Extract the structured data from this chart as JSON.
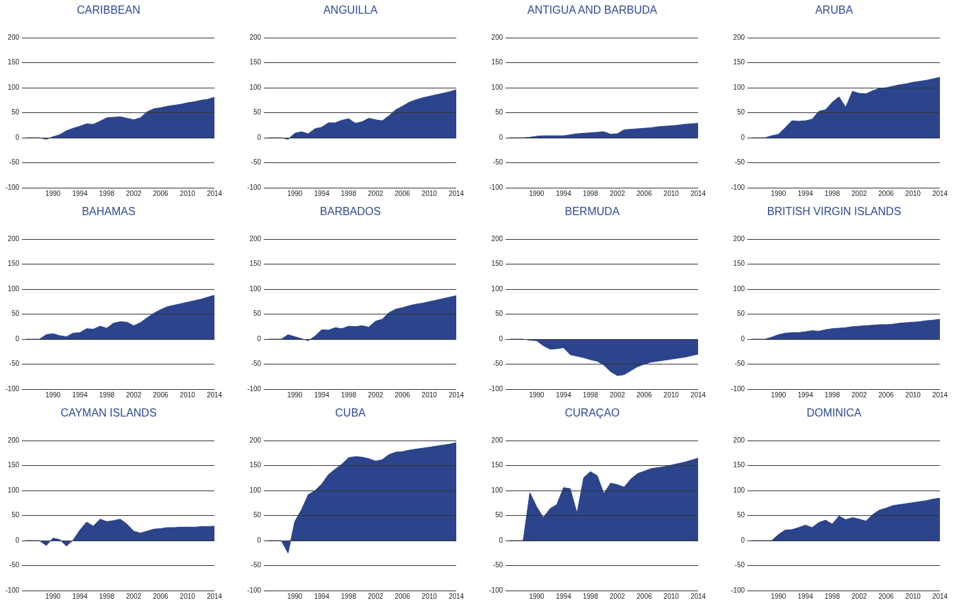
{
  "chart_data": [
    {
      "type": "area",
      "title": "CARIBBEAN",
      "color": "#2b448c",
      "grid": "y",
      "xlim": [
        1986,
        2014
      ],
      "ylim": [
        -100,
        200
      ],
      "xticks": [
        1990,
        1994,
        1998,
        2002,
        2006,
        2010,
        2014
      ],
      "yticks": [
        -100,
        -50,
        0,
        50,
        100,
        150,
        200
      ],
      "x": [
        1986,
        1987,
        1988,
        1989,
        1990,
        1991,
        1992,
        1993,
        1994,
        1995,
        1996,
        1997,
        1998,
        1999,
        2000,
        2001,
        2002,
        2003,
        2004,
        2005,
        2006,
        2007,
        2008,
        2009,
        2010,
        2011,
        2012,
        2013,
        2014
      ],
      "values": [
        0,
        0,
        0,
        -3,
        2,
        6,
        14,
        19,
        23,
        28,
        27,
        33,
        40,
        41,
        42,
        39,
        36,
        40,
        52,
        58,
        60,
        63,
        65,
        67,
        70,
        72,
        75,
        77,
        81
      ]
    },
    {
      "type": "area",
      "title": "ANGUILLA",
      "color": "#2b448c",
      "grid": "y",
      "xlim": [
        1986,
        2014
      ],
      "ylim": [
        -100,
        200
      ],
      "xticks": [
        1990,
        1994,
        1998,
        2002,
        2006,
        2010,
        2014
      ],
      "yticks": [
        -100,
        -50,
        0,
        50,
        100,
        150,
        200
      ],
      "x": [
        1986,
        1987,
        1988,
        1989,
        1990,
        1991,
        1992,
        1993,
        1994,
        1995,
        1996,
        1997,
        1998,
        1999,
        2000,
        2001,
        2002,
        2003,
        2004,
        2005,
        2006,
        2007,
        2008,
        2009,
        2010,
        2011,
        2012,
        2013,
        2014
      ],
      "values": [
        0,
        0,
        0,
        -3,
        9,
        12,
        8,
        18,
        21,
        30,
        30,
        35,
        38,
        29,
        32,
        39,
        36,
        34,
        44,
        56,
        63,
        71,
        76,
        80,
        83,
        86,
        89,
        92,
        96
      ]
    },
    {
      "type": "area",
      "title": "ANTIGUA AND BARBUDA",
      "color": "#2b448c",
      "grid": "y",
      "xlim": [
        1986,
        2014
      ],
      "ylim": [
        -100,
        200
      ],
      "xticks": [
        1990,
        1994,
        1998,
        2002,
        2006,
        2010,
        2014
      ],
      "yticks": [
        -100,
        -50,
        0,
        50,
        100,
        150,
        200
      ],
      "x": [
        1986,
        1987,
        1988,
        1989,
        1990,
        1991,
        1992,
        1993,
        1994,
        1995,
        1996,
        1997,
        1998,
        1999,
        2000,
        2001,
        2002,
        2003,
        2004,
        2005,
        2006,
        2007,
        2008,
        2009,
        2010,
        2011,
        2012,
        2013,
        2014
      ],
      "values": [
        0,
        0,
        0,
        1,
        3,
        4,
        4,
        4,
        4,
        6,
        8,
        9,
        10,
        11,
        12,
        7,
        8,
        16,
        17,
        18,
        19,
        20,
        22,
        23,
        24,
        25,
        27,
        28,
        29
      ]
    },
    {
      "type": "area",
      "title": "ARUBA",
      "color": "#2b448c",
      "grid": "y",
      "xlim": [
        1986,
        2014
      ],
      "ylim": [
        -100,
        200
      ],
      "xticks": [
        1990,
        1994,
        1998,
        2002,
        2006,
        2010,
        2014
      ],
      "yticks": [
        -100,
        -50,
        0,
        50,
        100,
        150,
        200
      ],
      "x": [
        1986,
        1987,
        1988,
        1989,
        1990,
        1991,
        1992,
        1993,
        1994,
        1995,
        1996,
        1997,
        1998,
        1999,
        2000,
        2001,
        2002,
        2003,
        2004,
        2005,
        2006,
        2007,
        2008,
        2009,
        2010,
        2011,
        2012,
        2013,
        2014
      ],
      "values": [
        0,
        0,
        0,
        4,
        7,
        20,
        34,
        33,
        34,
        37,
        53,
        56,
        71,
        82,
        61,
        93,
        89,
        88,
        94,
        99,
        100,
        103,
        106,
        108,
        111,
        113,
        115,
        118,
        121
      ]
    },
    {
      "type": "area",
      "title": "BAHAMAS",
      "color": "#2b448c",
      "grid": "y",
      "xlim": [
        1986,
        2014
      ],
      "ylim": [
        -100,
        200
      ],
      "xticks": [
        1990,
        1994,
        1998,
        2002,
        2006,
        2010,
        2014
      ],
      "yticks": [
        -100,
        -50,
        0,
        50,
        100,
        150,
        200
      ],
      "x": [
        1986,
        1987,
        1988,
        1989,
        1990,
        1991,
        1992,
        1993,
        1994,
        1995,
        1996,
        1997,
        1998,
        1999,
        2000,
        2001,
        2002,
        2003,
        2004,
        2005,
        2006,
        2007,
        2008,
        2009,
        2010,
        2011,
        2012,
        2013,
        2014
      ],
      "values": [
        0,
        0,
        0,
        9,
        11,
        7,
        5,
        12,
        13,
        21,
        20,
        26,
        22,
        32,
        35,
        34,
        27,
        33,
        43,
        52,
        59,
        65,
        68,
        71,
        74,
        77,
        80,
        84,
        88
      ]
    },
    {
      "type": "area",
      "title": "BARBADOS",
      "color": "#2b448c",
      "grid": "y",
      "xlim": [
        1986,
        2014
      ],
      "ylim": [
        -100,
        200
      ],
      "xticks": [
        1990,
        1994,
        1998,
        2002,
        2006,
        2010,
        2014
      ],
      "yticks": [
        -100,
        -50,
        0,
        50,
        100,
        150,
        200
      ],
      "x": [
        1986,
        1987,
        1988,
        1989,
        1990,
        1991,
        1992,
        1993,
        1994,
        1995,
        1996,
        1997,
        1998,
        1999,
        2000,
        2001,
        2002,
        2003,
        2004,
        2005,
        2006,
        2007,
        2008,
        2009,
        2010,
        2011,
        2012,
        2013,
        2014
      ],
      "values": [
        0,
        0,
        0,
        9,
        5,
        1,
        -3,
        6,
        19,
        18,
        23,
        21,
        26,
        25,
        27,
        24,
        36,
        40,
        53,
        60,
        63,
        67,
        70,
        72,
        75,
        78,
        81,
        84,
        87
      ]
    },
    {
      "type": "area",
      "title": "BERMUDA",
      "color": "#2b448c",
      "grid": "y",
      "xlim": [
        1986,
        2014
      ],
      "ylim": [
        -100,
        200
      ],
      "xticks": [
        1990,
        1994,
        1998,
        2002,
        2006,
        2010,
        2014
      ],
      "yticks": [
        -100,
        -50,
        0,
        50,
        100,
        150,
        200
      ],
      "x": [
        1986,
        1987,
        1988,
        1989,
        1990,
        1991,
        1992,
        1993,
        1994,
        1995,
        1996,
        1997,
        1998,
        1999,
        2000,
        2001,
        2002,
        2003,
        2004,
        2005,
        2006,
        2007,
        2008,
        2009,
        2010,
        2011,
        2012,
        2013,
        2014
      ],
      "values": [
        0,
        0,
        0,
        -2,
        -3,
        -13,
        -20,
        -19,
        -17,
        -31,
        -34,
        -37,
        -41,
        -44,
        -52,
        -65,
        -73,
        -71,
        -63,
        -55,
        -50,
        -46,
        -44,
        -42,
        -40,
        -38,
        -36,
        -33,
        -30
      ]
    },
    {
      "type": "area",
      "title": "BRITISH VIRGIN ISLANDS",
      "color": "#2b448c",
      "grid": "y",
      "xlim": [
        1986,
        2014
      ],
      "ylim": [
        -100,
        200
      ],
      "xticks": [
        1990,
        1994,
        1998,
        2002,
        2006,
        2010,
        2014
      ],
      "yticks": [
        -100,
        -50,
        0,
        50,
        100,
        150,
        200
      ],
      "x": [
        1986,
        1987,
        1988,
        1989,
        1990,
        1991,
        1992,
        1993,
        1994,
        1995,
        1996,
        1997,
        1998,
        1999,
        2000,
        2001,
        2002,
        2003,
        2004,
        2005,
        2006,
        2007,
        2008,
        2009,
        2010,
        2011,
        2012,
        2013,
        2014
      ],
      "values": [
        0,
        0,
        0,
        4,
        9,
        12,
        13,
        13,
        15,
        17,
        16,
        19,
        21,
        22,
        23,
        25,
        26,
        27,
        28,
        29,
        29,
        30,
        32,
        33,
        34,
        35,
        37,
        38,
        40
      ]
    },
    {
      "type": "area",
      "title": "CAYMAN ISLANDS",
      "color": "#2b448c",
      "grid": "y",
      "xlim": [
        1986,
        2014
      ],
      "ylim": [
        -100,
        200
      ],
      "xticks": [
        1990,
        1994,
        1998,
        2002,
        2006,
        2010,
        2014
      ],
      "yticks": [
        -100,
        -50,
        0,
        50,
        100,
        150,
        200
      ],
      "x": [
        1986,
        1987,
        1988,
        1989,
        1990,
        1991,
        1992,
        1993,
        1994,
        1995,
        1996,
        1997,
        1998,
        1999,
        2000,
        2001,
        2002,
        2003,
        2004,
        2005,
        2006,
        2007,
        2008,
        2009,
        2010,
        2011,
        2012,
        2013,
        2014
      ],
      "values": [
        0,
        0,
        0,
        -10,
        5,
        2,
        -11,
        1,
        21,
        37,
        29,
        43,
        38,
        40,
        43,
        33,
        19,
        15,
        19,
        23,
        24,
        26,
        26,
        27,
        27,
        27,
        28,
        28,
        29
      ]
    },
    {
      "type": "area",
      "title": "CUBA",
      "color": "#2b448c",
      "grid": "y",
      "xlim": [
        1986,
        2014
      ],
      "ylim": [
        -100,
        200
      ],
      "xticks": [
        1990,
        1994,
        1998,
        2002,
        2006,
        2010,
        2014
      ],
      "yticks": [
        -100,
        -50,
        0,
        50,
        100,
        150,
        200
      ],
      "x": [
        1986,
        1987,
        1988,
        1989,
        1990,
        1991,
        1992,
        1993,
        1994,
        1995,
        1996,
        1997,
        1998,
        1999,
        2000,
        2001,
        2002,
        2003,
        2004,
        2005,
        2006,
        2007,
        2008,
        2009,
        2010,
        2011,
        2012,
        2013,
        2014
      ],
      "values": [
        0,
        0,
        0,
        -25,
        38,
        62,
        92,
        100,
        113,
        132,
        143,
        153,
        166,
        168,
        167,
        164,
        159,
        162,
        172,
        177,
        178,
        181,
        183,
        185,
        187,
        189,
        191,
        193,
        196
      ]
    },
    {
      "type": "area",
      "title": "CURAÇAO",
      "color": "#2b448c",
      "grid": "y",
      "xlim": [
        1986,
        2014
      ],
      "ylim": [
        -100,
        200
      ],
      "xticks": [
        1990,
        1994,
        1998,
        2002,
        2006,
        2010,
        2014
      ],
      "yticks": [
        -100,
        -50,
        0,
        50,
        100,
        150,
        200
      ],
      "x": [
        1986,
        1987,
        1988,
        1989,
        1990,
        1991,
        1992,
        1993,
        1994,
        1995,
        1996,
        1997,
        1998,
        1999,
        2000,
        2001,
        2002,
        2003,
        2004,
        2005,
        2006,
        2007,
        2008,
        2009,
        2010,
        2011,
        2012,
        2013,
        2014
      ],
      "values": [
        0,
        0,
        0,
        96,
        68,
        46,
        64,
        72,
        106,
        104,
        55,
        126,
        138,
        130,
        94,
        115,
        112,
        107,
        123,
        134,
        139,
        144,
        146,
        148,
        151,
        154,
        157,
        161,
        165
      ]
    },
    {
      "type": "area",
      "title": "DOMINICA",
      "color": "#2b448c",
      "grid": "y",
      "xlim": [
        1986,
        2014
      ],
      "ylim": [
        -100,
        200
      ],
      "xticks": [
        1990,
        1994,
        1998,
        2002,
        2006,
        2010,
        2014
      ],
      "yticks": [
        -100,
        -50,
        0,
        50,
        100,
        150,
        200
      ],
      "x": [
        1986,
        1987,
        1988,
        1989,
        1990,
        1991,
        1992,
        1993,
        1994,
        1995,
        1996,
        1997,
        1998,
        1999,
        2000,
        2001,
        2002,
        2003,
        2004,
        2005,
        2006,
        2007,
        2008,
        2009,
        2010,
        2011,
        2012,
        2013,
        2014
      ],
      "values": [
        0,
        0,
        0,
        0,
        12,
        21,
        22,
        26,
        31,
        26,
        36,
        41,
        33,
        49,
        42,
        46,
        43,
        39,
        52,
        61,
        65,
        70,
        72,
        74,
        76,
        78,
        80,
        83,
        85
      ]
    }
  ]
}
